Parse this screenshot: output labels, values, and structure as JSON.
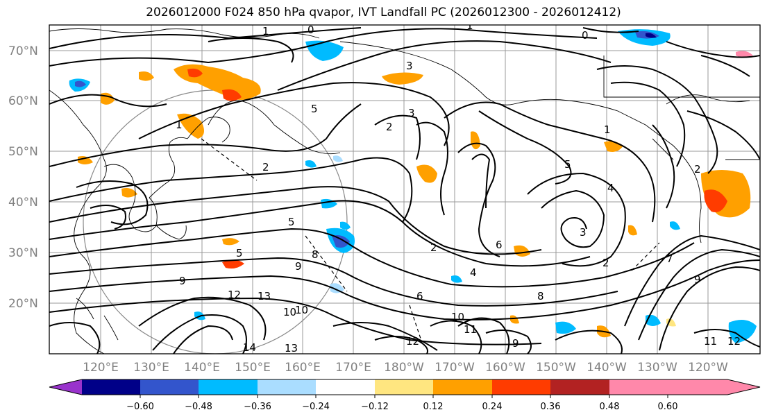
{
  "title": "2026012000 F024 850 hPa qvapor, IVT Landfall PC (2026012300 - 2026012412)",
  "lat_labels": [
    "70°N",
    "60°N",
    "50°N",
    "40°N",
    "30°N",
    "20°N"
  ],
  "lon_labels": [
    "120°E",
    "130°E",
    "140°E",
    "150°E",
    "160°E",
    "170°E",
    "180°W",
    "170°W",
    "160°W",
    "150°W",
    "140°W",
    "130°W",
    "120°W"
  ],
  "contour_labels": [
    "1",
    "0",
    "1",
    "0",
    "3",
    "3",
    "2",
    "5",
    "1",
    "2",
    "5",
    "4",
    "6",
    "5",
    "2",
    "1",
    "2",
    "3",
    "7",
    "2",
    "9",
    "8",
    "12",
    "13",
    "14",
    "13",
    "10",
    "10",
    "11",
    "12",
    "9",
    "8",
    "11",
    "12",
    "5",
    "6",
    "4",
    "9",
    "9",
    "10"
  ],
  "colorbar": {
    "colors": [
      "#9933cc",
      "#000088",
      "#3355cc",
      "#00bbff",
      "#aaddff",
      "#ffffff",
      "#ffe680",
      "#ffa000",
      "#ff3c00",
      "#b22222",
      "#ff88aa"
    ],
    "ticks": [
      "−0.60",
      "−0.48",
      "−0.36",
      "−0.24",
      "−0.12",
      "0.12",
      "0.24",
      "0.36",
      "0.48",
      "0.60"
    ]
  },
  "colors": {
    "grid": "#999999",
    "coast": "#000000",
    "label_gray": "#808080"
  }
}
